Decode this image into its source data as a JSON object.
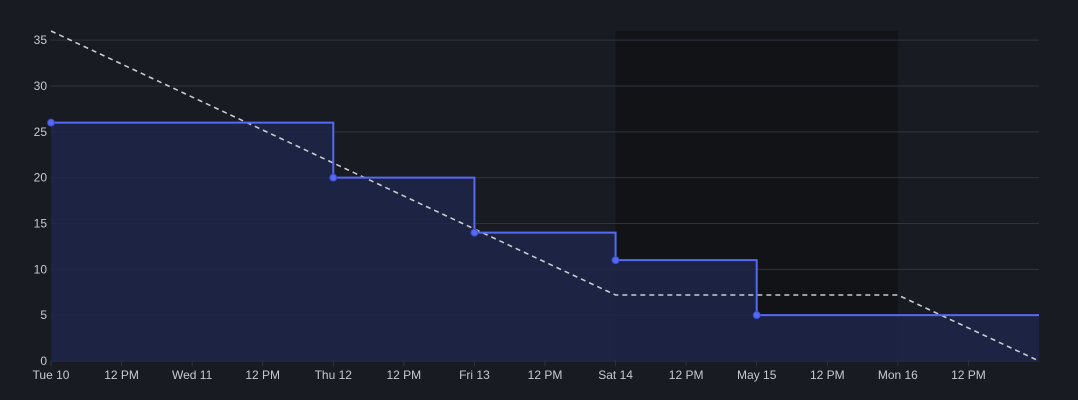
{
  "colors": {
    "background": "#181b21",
    "weekend_band": "#111317",
    "grid": "#2f333c",
    "actual_line": "#5569f2",
    "actual_fill": "#1f2649",
    "ideal_line": "#c9cbd1",
    "tick_text": "#c7cad1"
  },
  "chart_data": {
    "type": "line",
    "title": "",
    "xlabel": "",
    "ylabel": "",
    "x_axis": "time",
    "x_ticks": [
      "Tue 10",
      "12 PM",
      "Wed 11",
      "12 PM",
      "Thu 12",
      "12 PM",
      "Fri 13",
      "12 PM",
      "Sat 14",
      "12 PM",
      "May 15",
      "12 PM",
      "Mon 16",
      "12 PM"
    ],
    "x_tick_hours": [
      0,
      12,
      24,
      36,
      48,
      60,
      72,
      84,
      96,
      108,
      120,
      132,
      144,
      156
    ],
    "x_range_hours": [
      0,
      168
    ],
    "y_ticks": [
      0,
      5,
      10,
      15,
      20,
      25,
      30,
      35
    ],
    "ylim": [
      0,
      36
    ],
    "grid": true,
    "legend": "none",
    "shaded_period": {
      "start": "Sat 14",
      "end": "Mon 16",
      "start_hour": 96,
      "end_hour": 144
    },
    "series": [
      {
        "style": "step",
        "points": [
          {
            "x": "Tue 10",
            "x_hour": 0,
            "y": 26
          },
          {
            "x": "Thu 12",
            "x_hour": 48,
            "y": 20
          },
          {
            "x": "Fri 13",
            "x_hour": 72,
            "y": 14
          },
          {
            "x": "Sat 14",
            "x_hour": 96,
            "y": 11
          },
          {
            "x": "May 15",
            "x_hour": 120,
            "y": 5
          }
        ],
        "extends_to_hour": 168,
        "markers": true,
        "filled": true
      },
      {
        "style": "dashed",
        "points": [
          {
            "x_hour": 0,
            "y": 36
          },
          {
            "x_hour": 96,
            "y": 7.2
          },
          {
            "x_hour": 144,
            "y": 7.2
          },
          {
            "x_hour": 168,
            "y": 0
          }
        ],
        "markers": false,
        "filled": false
      }
    ]
  }
}
